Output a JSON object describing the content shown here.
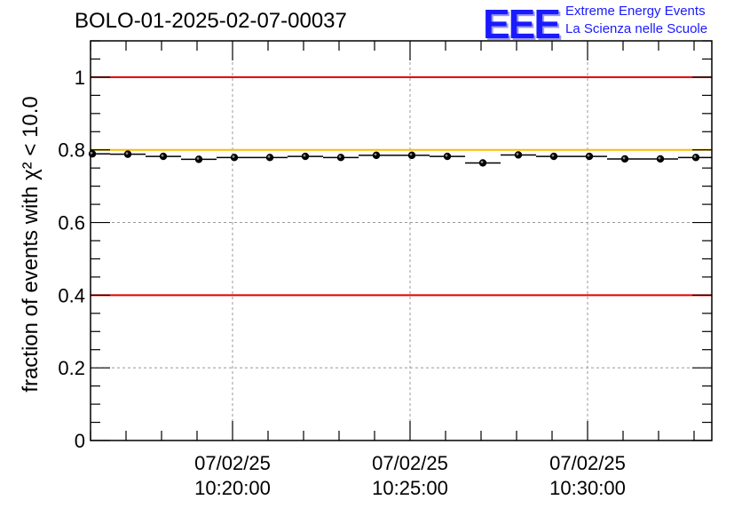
{
  "header": {
    "title": "BOLO-01-2025-02-07-00037",
    "logo_text": "EEE",
    "logo_line1": "Extreme Energy Events",
    "logo_line2": "La Scienza nelle Scuole"
  },
  "colors": {
    "threshold_red": "#e00000",
    "threshold_orange": "#ffbb00",
    "logo_blue": "#1a1aff"
  },
  "chart_data": {
    "type": "scatter",
    "title": "BOLO-01-2025-02-07-00037",
    "ylabel": "fraction of events with χ² < 10.0",
    "ylim": [
      0,
      1.1
    ],
    "yticks": [
      0,
      0.2,
      0.4,
      0.6,
      0.8,
      1
    ],
    "ytick_labels": [
      "0",
      "0.2",
      "0.4",
      "0.6",
      "0.8",
      "1"
    ],
    "xlim_minutes": [
      16.0,
      33.5
    ],
    "xticks": [
      {
        "minute": 20,
        "line1": "07/02/25",
        "line2": "10:20:00"
      },
      {
        "minute": 25,
        "line1": "07/02/25",
        "line2": "10:25:00"
      },
      {
        "minute": 30,
        "line1": "07/02/25",
        "line2": "10:30:00"
      }
    ],
    "bin_width_minutes": 1.0,
    "points": [
      {
        "minute": 16.05,
        "value": 0.789
      },
      {
        "minute": 17.05,
        "value": 0.788
      },
      {
        "minute": 18.05,
        "value": 0.782
      },
      {
        "minute": 19.05,
        "value": 0.774
      },
      {
        "minute": 20.05,
        "value": 0.779
      },
      {
        "minute": 21.05,
        "value": 0.779
      },
      {
        "minute": 22.05,
        "value": 0.782
      },
      {
        "minute": 23.05,
        "value": 0.779
      },
      {
        "minute": 24.05,
        "value": 0.785
      },
      {
        "minute": 25.05,
        "value": 0.785
      },
      {
        "minute": 26.05,
        "value": 0.782
      },
      {
        "minute": 27.05,
        "value": 0.764
      },
      {
        "minute": 28.05,
        "value": 0.786
      },
      {
        "minute": 29.05,
        "value": 0.782
      },
      {
        "minute": 30.05,
        "value": 0.782
      },
      {
        "minute": 31.05,
        "value": 0.775
      },
      {
        "minute": 32.05,
        "value": 0.775
      },
      {
        "minute": 33.05,
        "value": 0.779
      }
    ],
    "reference_lines": [
      {
        "value": 1.0,
        "color": "#e00000"
      },
      {
        "value": 0.8,
        "color": "#ffbb00"
      },
      {
        "value": 0.4,
        "color": "#e00000"
      }
    ],
    "grid": true
  }
}
